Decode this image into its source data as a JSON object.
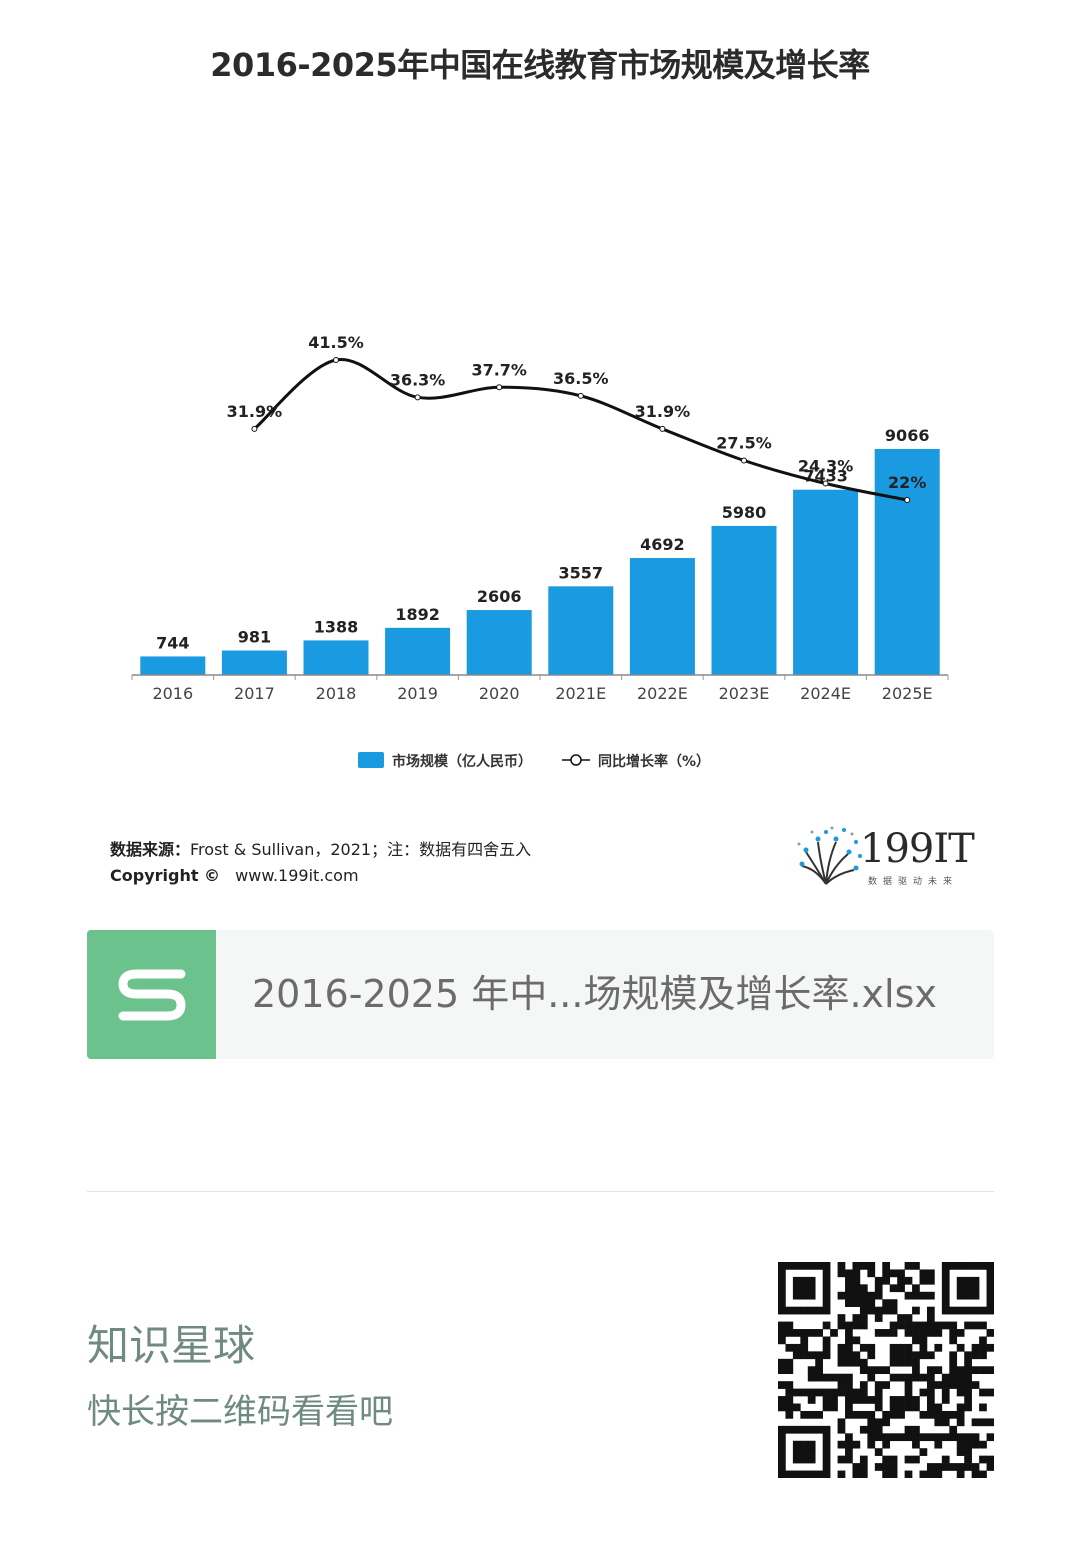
{
  "chart_data": {
    "type": "bar",
    "title": "2016-2025年中国在线教育市场规模及增长率",
    "categories": [
      "2016",
      "2017",
      "2018",
      "2019",
      "2020",
      "2021E",
      "2022E",
      "2023E",
      "2024E",
      "2025E"
    ],
    "series": [
      {
        "name": "市场规模（亿人民币）",
        "type": "bar",
        "values": [
          744,
          981,
          1388,
          1892,
          2606,
          3557,
          4692,
          5980,
          7433,
          9066
        ]
      },
      {
        "name": "同比增长率（%）",
        "type": "line",
        "values": [
          null,
          31.9,
          41.5,
          36.3,
          37.7,
          36.5,
          31.9,
          27.5,
          24.3,
          22
        ],
        "labels": [
          null,
          "31.9%",
          "41.5%",
          "36.3%",
          "37.7%",
          "36.5%",
          "31.9%",
          "27.5%",
          "24.3%",
          "22%"
        ]
      }
    ],
    "legend": "bottom-center",
    "grid": false,
    "colors": {
      "bar": "#1a9ae0",
      "line": "#111111"
    }
  },
  "source": {
    "label": "数据来源：",
    "text": "Frost & Sullivan，2021；注：数据有四舍五入",
    "copyright_label": "Copyright ©",
    "url": "www.199it.com"
  },
  "logo": {
    "text": "199IT",
    "subtitle": "数据驱动未来"
  },
  "file_card": {
    "icon": "spreadsheet-s-icon",
    "name": "2016-2025 年中...场规模及增长率.xlsx",
    "icon_color": "#6cc28c"
  },
  "footer": {
    "planet": "知识星球",
    "scan_hint": "快长按二维码看看吧"
  }
}
